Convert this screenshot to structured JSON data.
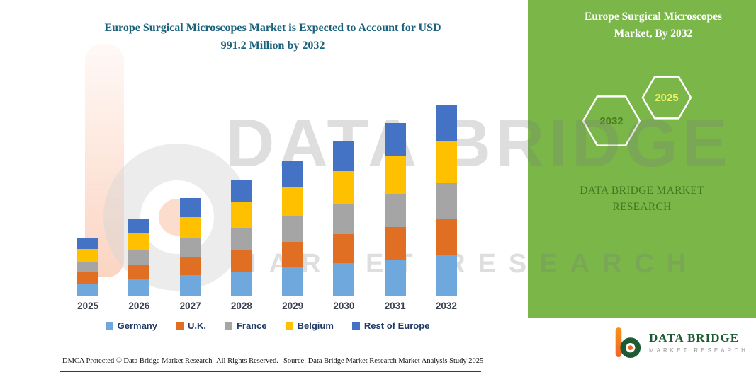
{
  "colors": {
    "panel_green": "#7AB648",
    "panel_text_green": "#3F7A1F",
    "title_teal": "#1A617C",
    "logo_green": "#1D5C33",
    "logo_orange": "#F26522",
    "footer_line_red": "#8C1515",
    "axis_line": "#BFBFBF",
    "legend_text": "#1F3864"
  },
  "main_title": {
    "line1": "Europe Surgical Microscopes Market is Expected to Account for USD",
    "line2": "991.2 Million by 2032"
  },
  "chart_data": {
    "type": "bar",
    "stacked": true,
    "title": "Europe Surgical Microscopes Market is Expected to Account for USD 991.2 Million by 2032",
    "unit": "USD Million (values estimated from bar heights; 2032 total labeled as 991.2)",
    "categories": [
      "2025",
      "2026",
      "2027",
      "2028",
      "2029",
      "2030",
      "2031",
      "2032"
    ],
    "series": [
      {
        "name": "Germany",
        "color": "#6FA8DC",
        "values": [
          63,
          84,
          106,
          126,
          147,
          168,
          188,
          208
        ]
      },
      {
        "name": "U.K.",
        "color": "#E06F23",
        "values": [
          57,
          76,
          96,
          114,
          133,
          152,
          170,
          188
        ]
      },
      {
        "name": "France",
        "color": "#A5A5A5",
        "values": [
          57,
          76,
          96,
          114,
          133,
          152,
          170,
          188
        ]
      },
      {
        "name": "Belgium",
        "color": "#FFC000",
        "values": [
          66,
          88,
          111,
          132,
          154,
          176,
          197,
          218
        ]
      },
      {
        "name": "Rest of Europe",
        "color": "#4472C4",
        "values": [
          57,
          76,
          96,
          114,
          133,
          152,
          170,
          189.2
        ]
      }
    ],
    "totals": [
      300,
      400,
      505,
      600,
      700,
      800,
      895,
      991.2
    ],
    "ylim": [
      0,
      1000
    ],
    "gridlines": false,
    "legend_position": "bottom"
  },
  "right_panel": {
    "title_line1": "Europe Surgical Microscopes",
    "title_line2": "Market, By 2032",
    "hexagons": {
      "back": "2032",
      "front": "2025"
    },
    "brand": "DATA BRIDGE MARKET RESEARCH"
  },
  "watermark": {
    "line1": "DATA BRIDGE",
    "line2": "MARKET RESEARCH"
  },
  "logo": {
    "name": "DATA BRIDGE",
    "tagline": "MARKET RESEARCH"
  },
  "footer": {
    "dmca": "DMCA Protected © Data Bridge Market Research-  All Rights Reserved.",
    "source": "Source: Data Bridge Market Research  Market Analysis Study 2025"
  }
}
